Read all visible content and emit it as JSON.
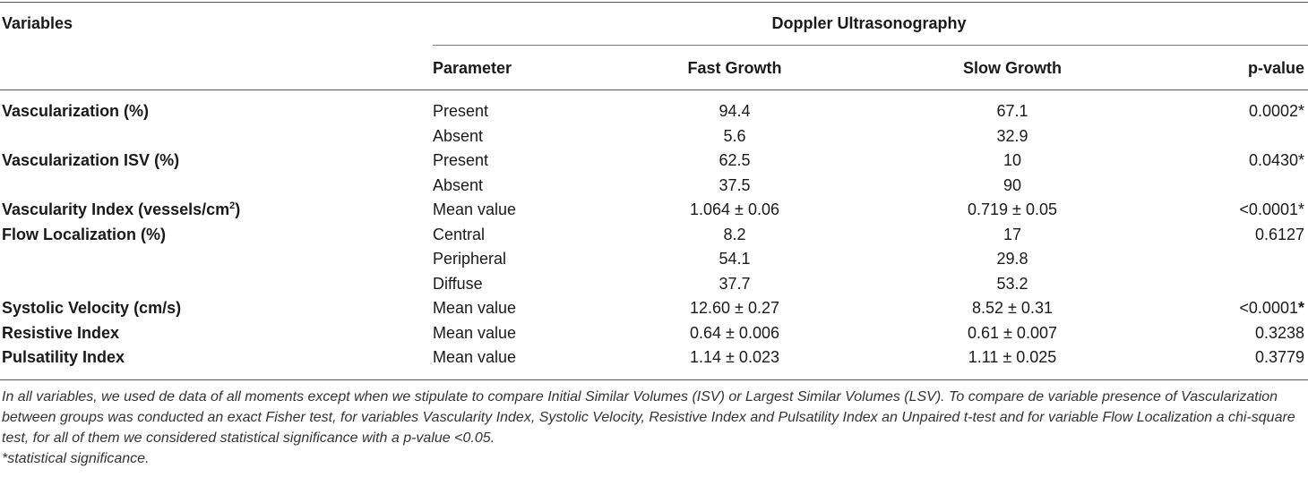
{
  "header": {
    "variables": "Variables",
    "group": "Doppler Ultrasonography",
    "parameter": "Parameter",
    "fast": "Fast Growth",
    "slow": "Slow Growth",
    "pvalue": "p-value"
  },
  "rows": [
    {
      "variable": "Vascularization (%)",
      "parameter": "Present",
      "fast": "94.4",
      "slow": "67.1",
      "p": "0.0002*"
    },
    {
      "variable": "",
      "parameter": "Absent",
      "fast": "5.6",
      "slow": "32.9",
      "p": ""
    },
    {
      "variable": "Vascularization ISV (%)",
      "parameter": "Present",
      "fast": "62.5",
      "slow": "10",
      "p": "0.0430*"
    },
    {
      "variable": "",
      "parameter": "Absent",
      "fast": "37.5",
      "slow": "90",
      "p": ""
    },
    {
      "variable": "Vascularity Index (vessels/cm",
      "variable_sup": "2",
      "variable_tail": ")",
      "parameter": "Mean value",
      "fast": "1.064 ± 0.06",
      "slow": "0.719 ± 0.05",
      "p": "<0.0001*"
    },
    {
      "variable": "Flow Localization (%)",
      "parameter": "Central",
      "fast": "8.2",
      "slow": "17",
      "p": "0.6127"
    },
    {
      "variable": "",
      "parameter": "Peripheral",
      "fast": "54.1",
      "slow": "29.8",
      "p": ""
    },
    {
      "variable": "",
      "parameter": "Diffuse",
      "fast": "37.7",
      "slow": "53.2",
      "p": ""
    },
    {
      "variable": "Systolic Velocity (cm/s)",
      "parameter": "Mean value",
      "fast": "12.60 ± 0.27",
      "slow": "8.52 ± 0.31",
      "p": "<0.0001",
      "p_star": "*"
    },
    {
      "variable": "Resistive Index",
      "parameter": "Mean value",
      "fast": "0.64 ± 0.006",
      "slow": "0.61 ± 0.007",
      "p": "0.3238"
    },
    {
      "variable": "Pulsatility Index",
      "parameter": "Mean value",
      "fast": "1.14 ± 0.023",
      "slow": "1.11 ± 0.025",
      "p": "0.3779"
    }
  ],
  "footnote": "In all variables, we used de data of all moments except when we stipulate to compare Initial Similar Volumes (ISV) or Largest Similar Volumes (LSV). To compare de variable presence of Vascularization between groups was conducted an exact Fisher test, for variables Vascularity Index, Systolic Velocity, Resistive Index and Pulsatility Index an Unpaired t-test and for variable Flow Localization a chi-square test, for all of them we considered statistical significance with a p-value <0.05.",
  "footnote2": "*statistical significance."
}
